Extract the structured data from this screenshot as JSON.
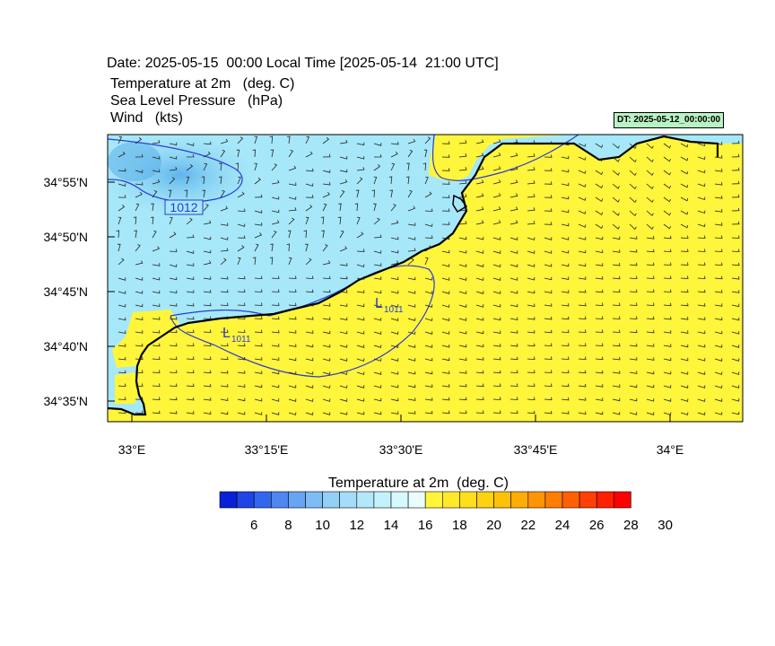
{
  "header": {
    "date_line": "Date: 2025-05-15  00:00 Local Time [2025-05-14  21:00 UTC]",
    "variables": [
      "Temperature at 2m   (deg. C)",
      "Sea Level Pressure   (hPa)",
      "Wind   (kts)"
    ],
    "dt_badge": "DT: 2025-05-12_00:00:00"
  },
  "map": {
    "lat_labels": [
      "34°55'N",
      "34°50'N",
      "34°45'N",
      "34°40'N",
      "34°35'N"
    ],
    "lon_labels": [
      "33°E",
      "33°15'E",
      "33°30'E",
      "33°45'E",
      "34°E"
    ],
    "isobar_labels": [
      "1012",
      "1011",
      "1011"
    ],
    "low_symbol": "L",
    "colors": {
      "land": "#fff53a",
      "sea_light": "#a4ecfb",
      "sea_mid": "#8ddcf5",
      "sea_dark": "#6bc0ef",
      "coast": "#000000",
      "isobar": "#2a3bd9"
    }
  },
  "colorbar": {
    "title": "Temperature at 2m  (deg. C)",
    "labels": [
      "6",
      "8",
      "10",
      "12",
      "14",
      "16",
      "18",
      "20",
      "22",
      "24",
      "26",
      "28",
      "30"
    ],
    "colors": [
      "#0a1fd8",
      "#1f45e6",
      "#3366ee",
      "#4f86f2",
      "#67a4f4",
      "#7dbcf5",
      "#93d0f7",
      "#a4ddf8",
      "#b2e8fa",
      "#c3f2fc",
      "#d6f9fd",
      "#e9fdfe",
      "#fff53a",
      "#ffea2a",
      "#ffdf1a",
      "#ffd20f",
      "#ffc108",
      "#ffac05",
      "#ff9504",
      "#ff7d03",
      "#ff6002",
      "#ff4002",
      "#ff1f01",
      "#ff0000"
    ]
  }
}
